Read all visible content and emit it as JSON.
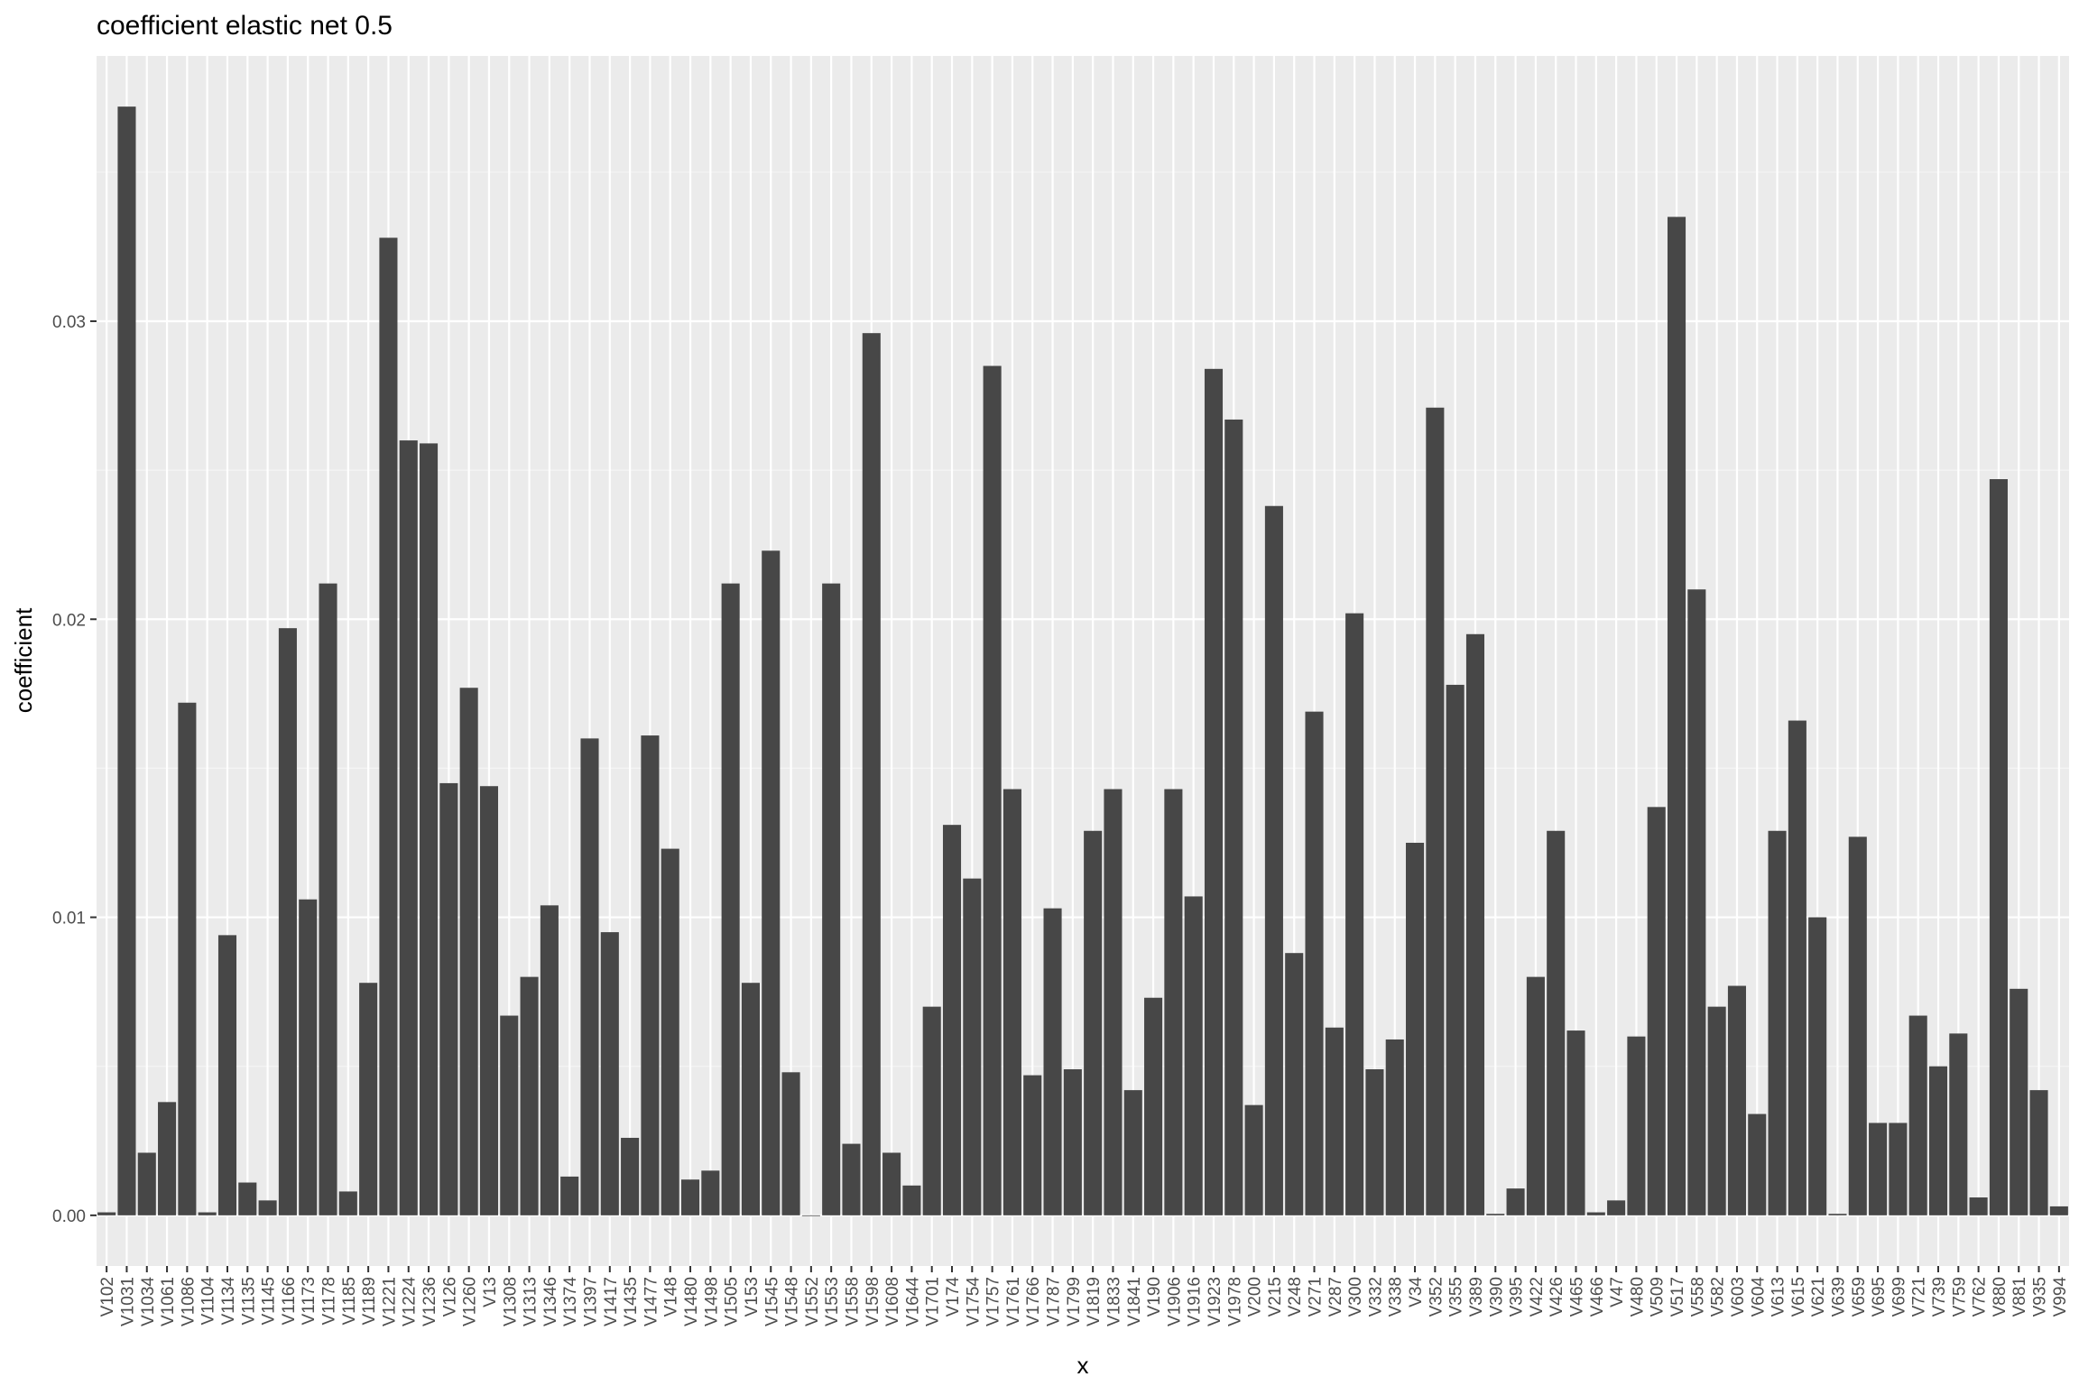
{
  "chart_data": {
    "type": "bar",
    "title": "coefficient elastic net 0.5",
    "xlabel": "x",
    "ylabel": "coefficient",
    "ylim": [
      -0.0017,
      0.0389
    ],
    "yticks": [
      0.0,
      0.01,
      0.02,
      0.03
    ],
    "ytick_labels": [
      "0.00",
      "0.01",
      "0.02",
      "0.03"
    ],
    "grid": true,
    "legend": "none",
    "colors": {
      "bar": "#474747",
      "panel": "#ebebeb",
      "grid_major": "#ffffff",
      "grid_minor": "#f5f5f5"
    },
    "categories": [
      "V102",
      "V1031",
      "V1034",
      "V1061",
      "V1086",
      "V1104",
      "V1134",
      "V1135",
      "V1145",
      "V1166",
      "V1173",
      "V1178",
      "V1185",
      "V1189",
      "V1221",
      "V1224",
      "V1236",
      "V126",
      "V1260",
      "V13",
      "V1308",
      "V1313",
      "V1346",
      "V1374",
      "V1397",
      "V1417",
      "V1435",
      "V1477",
      "V148",
      "V1480",
      "V1498",
      "V1505",
      "V153",
      "V1545",
      "V1548",
      "V1552",
      "V1553",
      "V1558",
      "V1598",
      "V1608",
      "V1644",
      "V1701",
      "V174",
      "V1754",
      "V1757",
      "V1761",
      "V1766",
      "V1787",
      "V1799",
      "V1819",
      "V1833",
      "V1841",
      "V190",
      "V1906",
      "V1916",
      "V1923",
      "V1978",
      "V200",
      "V215",
      "V248",
      "V271",
      "V287",
      "V300",
      "V332",
      "V338",
      "V34",
      "V352",
      "V355",
      "V389",
      "V390",
      "V395",
      "V422",
      "V426",
      "V465",
      "V466",
      "V47",
      "V480",
      "V509",
      "V517",
      "V558",
      "V582",
      "V603",
      "V604",
      "V613",
      "V615",
      "V621",
      "V639",
      "V659",
      "V695",
      "V699",
      "V721",
      "V739",
      "V759",
      "V762",
      "V880",
      "V881",
      "V935",
      "V994"
    ],
    "values": [
      0.0001,
      0.0372,
      0.0021,
      0.0038,
      0.0172,
      0.0001,
      0.0094,
      0.0011,
      0.0005,
      0.0197,
      0.0106,
      0.0212,
      0.0008,
      0.0078,
      0.0328,
      0.026,
      0.0259,
      0.0145,
      0.0177,
      0.0144,
      0.0067,
      0.008,
      0.0104,
      0.0013,
      0.016,
      0.0095,
      0.0026,
      0.0161,
      0.0123,
      0.0012,
      0.0015,
      0.0212,
      0.0078,
      0.0223,
      0.0048,
      0.0,
      0.0212,
      0.0024,
      0.0296,
      0.0021,
      0.001,
      0.007,
      0.0131,
      0.0113,
      0.0285,
      0.0143,
      0.0047,
      0.0103,
      0.0049,
      0.0129,
      0.0143,
      0.0042,
      0.0073,
      0.0143,
      0.0107,
      0.0284,
      0.0267,
      0.0037,
      0.0238,
      0.0088,
      0.0169,
      0.0063,
      0.0202,
      0.0049,
      0.0059,
      0.0125,
      0.0271,
      0.0178,
      0.0195,
      5e-05,
      0.0009,
      0.008,
      0.0129,
      0.0062,
      0.0001,
      0.0005,
      0.006,
      0.0137,
      0.0335,
      0.021,
      0.007,
      0.0077,
      0.0034,
      0.0129,
      0.0166,
      0.01,
      5e-05,
      0.0127,
      0.0031,
      0.0031,
      0.0067,
      0.005,
      0.0061,
      0.0006,
      0.0247,
      0.0076,
      0.0042,
      0.0003
    ]
  }
}
